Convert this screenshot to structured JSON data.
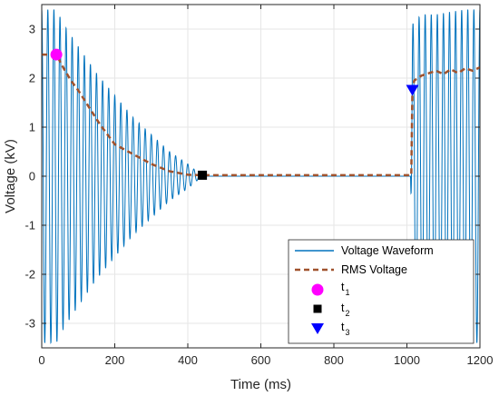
{
  "chart_data": {
    "type": "line",
    "xlabel": "Time (ms)",
    "ylabel": "Voltage (kV)",
    "xlim": [
      0,
      1200
    ],
    "ylim": [
      -3.5,
      3.5
    ],
    "x_ticks": [
      0,
      200,
      400,
      600,
      800,
      1000,
      1200
    ],
    "y_ticks": [
      -3,
      -2,
      -1,
      0,
      1,
      2,
      3
    ],
    "grid": true,
    "legend_position": "bottom-right",
    "series": [
      {
        "name": "Voltage Waveform",
        "color": "#0072BD",
        "style": "solid",
        "description": "sinusoid ~60 Hz",
        "envelope": {
          "t": [
            0,
            40,
            60,
            100,
            150,
            200,
            250,
            300,
            350,
            400,
            440,
            1010,
            1015,
            1040,
            1080,
            1120,
            1160,
            1200
          ],
          "amplitude": [
            3.4,
            3.4,
            3.1,
            2.65,
            2.1,
            1.65,
            1.2,
            0.85,
            0.5,
            0.25,
            0.0,
            0.0,
            3.1,
            3.3,
            3.3,
            3.35,
            3.4,
            3.4
          ]
        }
      },
      {
        "name": "RMS Voltage",
        "color": "#A0522D",
        "style": "dashed",
        "x": [
          0,
          40,
          60,
          80,
          100,
          130,
          160,
          200,
          250,
          300,
          350,
          400,
          440,
          500,
          600,
          700,
          800,
          900,
          1000,
          1012,
          1015,
          1020,
          1040,
          1060,
          1080,
          1100,
          1120,
          1140,
          1160,
          1180,
          1200
        ],
        "y": [
          2.48,
          2.48,
          2.2,
          1.95,
          1.75,
          1.4,
          1.05,
          0.65,
          0.45,
          0.25,
          0.1,
          0.03,
          0.02,
          0.02,
          0.02,
          0.02,
          0.02,
          0.02,
          0.02,
          0.02,
          1.75,
          1.95,
          2.05,
          2.1,
          2.15,
          2.08,
          2.18,
          2.1,
          2.2,
          2.15,
          2.22
        ]
      }
    ],
    "markers": [
      {
        "name": "t",
        "sub": "1",
        "x": 40,
        "y": 2.48,
        "shape": "circle",
        "color": "#FF00FF"
      },
      {
        "name": "t",
        "sub": "2",
        "x": 440,
        "y": 0.02,
        "shape": "square",
        "color": "#000000"
      },
      {
        "name": "t",
        "sub": "3",
        "x": 1015,
        "y": 1.75,
        "shape": "triangle-down",
        "color": "#0000FF"
      }
    ]
  },
  "colors": {
    "axis": "#262626",
    "grid": "#e6e6e6",
    "background": "#ffffff"
  }
}
